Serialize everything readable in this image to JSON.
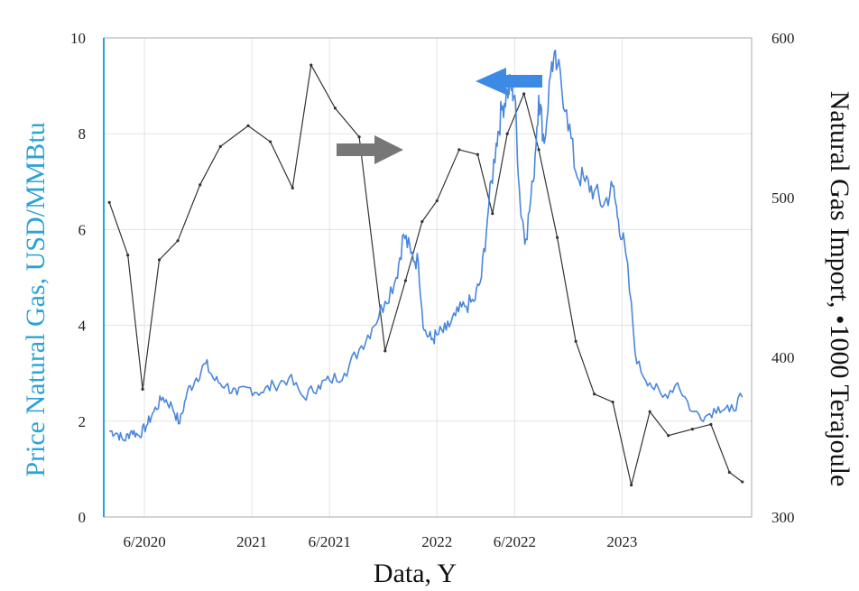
{
  "chart_data": {
    "type": "line",
    "xlabel": "Data, Y",
    "ylabel_left": "Price Natural Gas, USD/MMBtu",
    "ylabel_right": "Natural Gas Import, •1000 Terajoule",
    "x_ticks": [
      "6/2020",
      "2021",
      "6/2021",
      "2022",
      "6/2022",
      "2023"
    ],
    "x_tick_values": [
      2020.42,
      2021.0,
      2021.42,
      2022.0,
      2022.42,
      2023.0
    ],
    "xlim": [
      2020.2,
      2023.7
    ],
    "ylim_left": [
      0,
      10
    ],
    "ylim_right": [
      300,
      600
    ],
    "yticks_left": [
      0,
      2,
      4,
      6,
      8,
      10
    ],
    "yticks_right": [
      300,
      400,
      500,
      600
    ],
    "grid": true,
    "colors": {
      "price": "#4a86dc",
      "import": "#333333",
      "left_axis": "#29a3d6",
      "arrow_price": "#3d8ae6",
      "arrow_import": "#777777"
    },
    "series": [
      {
        "axis": "left",
        "points": [
          [
            2020.23,
            1.8
          ],
          [
            2020.27,
            1.75
          ],
          [
            2020.31,
            1.6
          ],
          [
            2020.35,
            1.8
          ],
          [
            2020.39,
            1.7
          ],
          [
            2020.43,
            1.9
          ],
          [
            2020.47,
            2.2
          ],
          [
            2020.52,
            2.5
          ],
          [
            2020.57,
            2.3
          ],
          [
            2020.61,
            1.95
          ],
          [
            2020.65,
            2.6
          ],
          [
            2020.7,
            2.9
          ],
          [
            2020.75,
            3.2
          ],
          [
            2020.8,
            2.85
          ],
          [
            2020.86,
            2.75
          ],
          [
            2020.92,
            2.55
          ],
          [
            2020.98,
            2.7
          ],
          [
            2021.05,
            2.6
          ],
          [
            2021.12,
            2.75
          ],
          [
            2021.2,
            2.9
          ],
          [
            2021.28,
            2.5
          ],
          [
            2021.36,
            2.75
          ],
          [
            2021.42,
            2.85
          ],
          [
            2021.5,
            3.0
          ],
          [
            2021.58,
            3.5
          ],
          [
            2021.65,
            3.95
          ],
          [
            2021.72,
            4.5
          ],
          [
            2021.78,
            5.0
          ],
          [
            2021.82,
            5.9
          ],
          [
            2021.86,
            5.5
          ],
          [
            2021.9,
            5.3
          ],
          [
            2021.93,
            3.9
          ],
          [
            2021.97,
            3.7
          ],
          [
            2022.0,
            3.8
          ],
          [
            2022.05,
            3.9
          ],
          [
            2022.1,
            4.2
          ],
          [
            2022.15,
            4.4
          ],
          [
            2022.2,
            4.5
          ],
          [
            2022.24,
            5.0
          ],
          [
            2022.28,
            6.5
          ],
          [
            2022.32,
            7.8
          ],
          [
            2022.35,
            8.5
          ],
          [
            2022.38,
            8.9
          ],
          [
            2022.4,
            9.0
          ],
          [
            2022.42,
            8.8
          ],
          [
            2022.45,
            6.5
          ],
          [
            2022.48,
            5.8
          ],
          [
            2022.52,
            7.0
          ],
          [
            2022.55,
            8.8
          ],
          [
            2022.58,
            7.8
          ],
          [
            2022.62,
            9.5
          ],
          [
            2022.65,
            9.4
          ],
          [
            2022.7,
            8.5
          ],
          [
            2022.75,
            7.2
          ],
          [
            2022.8,
            7.0
          ],
          [
            2022.85,
            6.8
          ],
          [
            2022.9,
            6.5
          ],
          [
            2022.95,
            6.9
          ],
          [
            2022.98,
            6.2
          ],
          [
            2023.02,
            5.5
          ],
          [
            2023.08,
            3.2
          ],
          [
            2023.15,
            2.8
          ],
          [
            2023.22,
            2.5
          ],
          [
            2023.3,
            2.8
          ],
          [
            2023.38,
            2.2
          ],
          [
            2023.45,
            2.1
          ],
          [
            2023.52,
            2.3
          ],
          [
            2023.58,
            2.2
          ],
          [
            2023.65,
            2.5
          ]
        ]
      },
      {
        "axis": "right",
        "points": [
          [
            2020.23,
            497
          ],
          [
            2020.33,
            464
          ],
          [
            2020.41,
            380
          ],
          [
            2020.5,
            461
          ],
          [
            2020.6,
            473
          ],
          [
            2020.72,
            508
          ],
          [
            2020.83,
            532
          ],
          [
            2020.98,
            545
          ],
          [
            2021.1,
            535
          ],
          [
            2021.22,
            506
          ],
          [
            2021.32,
            583
          ],
          [
            2021.45,
            556
          ],
          [
            2021.58,
            538
          ],
          [
            2021.72,
            404
          ],
          [
            2021.83,
            448
          ],
          [
            2021.92,
            485
          ],
          [
            2022.0,
            498
          ],
          [
            2022.12,
            530
          ],
          [
            2022.22,
            527
          ],
          [
            2022.3,
            490
          ],
          [
            2022.38,
            540
          ],
          [
            2022.47,
            565
          ],
          [
            2022.55,
            530
          ],
          [
            2022.65,
            475
          ],
          [
            2022.75,
            410
          ],
          [
            2022.85,
            377
          ],
          [
            2022.95,
            372
          ],
          [
            2023.05,
            320
          ],
          [
            2023.15,
            366
          ],
          [
            2023.25,
            351
          ],
          [
            2023.38,
            355
          ],
          [
            2023.48,
            358
          ],
          [
            2023.58,
            328
          ],
          [
            2023.65,
            322
          ]
        ]
      }
    ]
  }
}
